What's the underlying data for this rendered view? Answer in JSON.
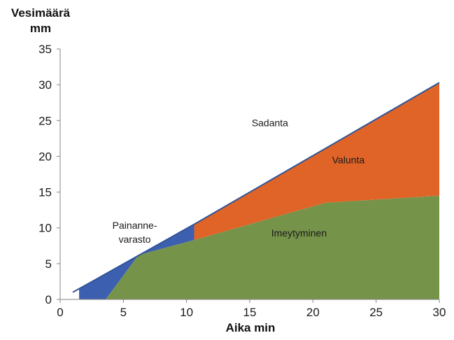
{
  "chart_data": {
    "type": "area",
    "title": "",
    "xlabel": "Aika min",
    "ylabel_lines": [
      "Vesimäärä",
      "mm"
    ],
    "xlim": [
      0,
      30
    ],
    "ylim": [
      0,
      35
    ],
    "x_ticks": [
      0,
      5,
      10,
      15,
      20,
      25,
      30
    ],
    "y_ticks": [
      0,
      5,
      10,
      15,
      20,
      25,
      30,
      35
    ],
    "grid": false,
    "legend": "none",
    "series": [
      {
        "key": "sadanta",
        "label_lines": [
          "Sadanta"
        ],
        "color": "#2f5597",
        "points": [
          [
            1,
            1
          ],
          [
            10.6,
            10.5
          ],
          [
            30,
            30.3
          ]
        ]
      },
      {
        "key": "painannevarasto",
        "label_lines": [
          "Painanne-",
          "varasto"
        ],
        "color": "#3c5fb0",
        "points": [
          [
            1.5,
            1.5
          ],
          [
            6.2,
            6.2
          ],
          [
            10.6,
            10.5
          ],
          [
            10.6,
            8.3
          ],
          [
            6.2,
            6.2
          ],
          [
            3.6,
            0
          ],
          [
            1.5,
            0
          ]
        ]
      },
      {
        "key": "valunta",
        "label_lines": [
          "Valunta"
        ],
        "color": "#e06428",
        "points": [
          [
            10.6,
            10.5
          ],
          [
            30,
            30.3
          ],
          [
            30,
            14.5
          ],
          [
            21,
            13.5
          ],
          [
            10.6,
            8.3
          ]
        ]
      },
      {
        "key": "imeytyminen",
        "label_lines": [
          "Imeytyminen"
        ],
        "color": "#76934a",
        "points": [
          [
            3.6,
            0
          ],
          [
            6.2,
            6.2
          ],
          [
            10.6,
            8.3
          ],
          [
            21,
            13.5
          ],
          [
            30,
            14.5
          ],
          [
            30,
            0
          ]
        ]
      }
    ],
    "annotations": [
      {
        "series": "sadanta",
        "x": 16.6,
        "y": 24.2
      },
      {
        "series": "valunta",
        "x": 22.8,
        "y": 19.0
      },
      {
        "series": "imeytyminen",
        "x": 18.9,
        "y": 8.8
      },
      {
        "series": "painannevarasto",
        "x": 5.9,
        "y": 8.9
      }
    ]
  }
}
